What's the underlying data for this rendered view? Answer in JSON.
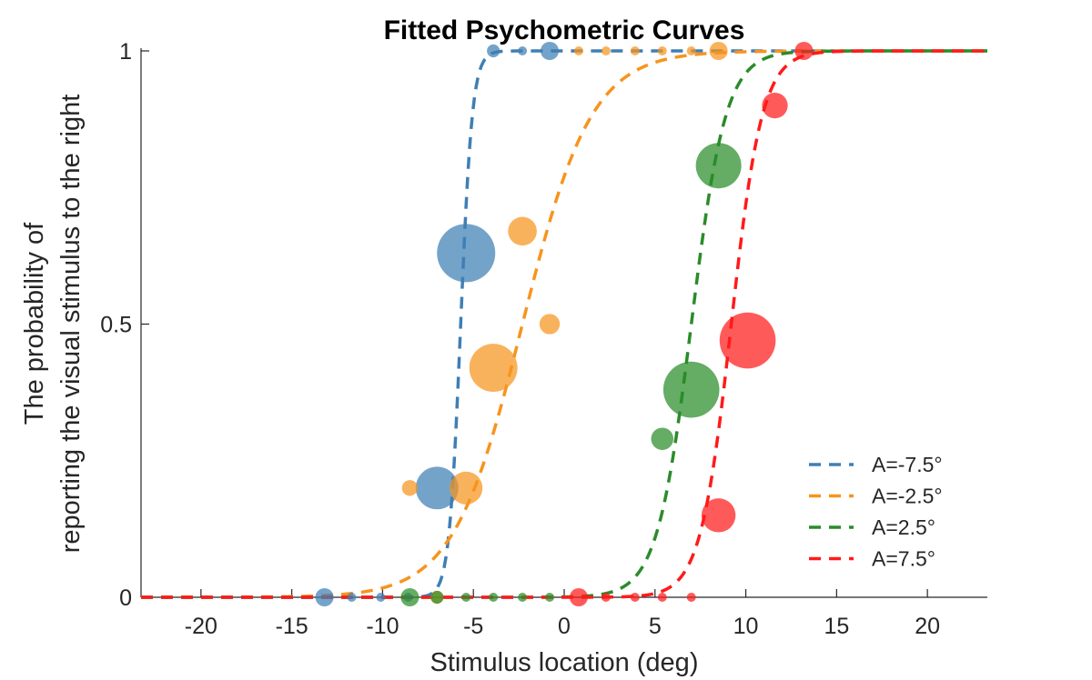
{
  "chart_data": {
    "type": "scatter",
    "title": "Fitted Psychometric Curves",
    "xlabel": "Stimulus location (deg)",
    "ylabel_line1": "The probability of",
    "ylabel_line2": "reporting the visual stimulus to the right",
    "xlim": [
      -23.3,
      23.3
    ],
    "ylim": [
      0,
      1
    ],
    "xticks": [
      -20,
      -15,
      -10,
      -5,
      0,
      5,
      10,
      15,
      20
    ],
    "xtick_labels": [
      "-20",
      "-15",
      "-10",
      "-5",
      "0",
      "5",
      "10",
      "15",
      "20"
    ],
    "yticks": [
      0,
      0.5,
      1
    ],
    "ytick_labels": [
      "0",
      "0.5",
      "1"
    ],
    "grid": false,
    "legend_position": "bottom-right",
    "line_style": "dashed fitted logistic curves",
    "series": [
      {
        "name": "A=-7.5°",
        "color": "#3f7fb4",
        "fit": {
          "mu": -5.7,
          "sigma": 0.32
        },
        "points": [
          {
            "x": -13.2,
            "y": 0,
            "n": 4
          },
          {
            "x": -11.7,
            "y": 0,
            "n": 1
          },
          {
            "x": -10.1,
            "y": 0,
            "n": 1
          },
          {
            "x": -8.6,
            "y": 0,
            "n": 1
          },
          {
            "x": -7.0,
            "y": 0.2,
            "n": 22
          },
          {
            "x": -5.4,
            "y": 0.63,
            "n": 41
          },
          {
            "x": -3.9,
            "y": 1,
            "n": 2
          },
          {
            "x": -2.3,
            "y": 1,
            "n": 1
          },
          {
            "x": -0.8,
            "y": 1,
            "n": 4
          }
        ]
      },
      {
        "name": "A=-2.5°",
        "color": "#f7941d",
        "fit": {
          "mu": -2.3,
          "sigma": 1.9
        },
        "points": [
          {
            "x": -8.5,
            "y": 0.2,
            "n": 3
          },
          {
            "x": -7.0,
            "y": 0,
            "n": 2
          },
          {
            "x": -5.4,
            "y": 0.2,
            "n": 13
          },
          {
            "x": -3.9,
            "y": 0.42,
            "n": 28
          },
          {
            "x": -2.3,
            "y": 0.67,
            "n": 10
          },
          {
            "x": -0.8,
            "y": 0.5,
            "n": 5
          },
          {
            "x": 0.8,
            "y": 1,
            "n": 1
          },
          {
            "x": 2.3,
            "y": 1,
            "n": 1
          },
          {
            "x": 3.9,
            "y": 1,
            "n": 1
          },
          {
            "x": 5.4,
            "y": 1,
            "n": 1
          },
          {
            "x": 7.0,
            "y": 1,
            "n": 1
          },
          {
            "x": 8.5,
            "y": 1,
            "n": 4
          }
        ]
      },
      {
        "name": "A=2.5°",
        "color": "#2a8c2a",
        "fit": {
          "mu": 7.0,
          "sigma": 0.95
        },
        "points": [
          {
            "x": -8.5,
            "y": 0,
            "n": 4
          },
          {
            "x": -7.0,
            "y": 0,
            "n": 2
          },
          {
            "x": -5.4,
            "y": 0,
            "n": 1
          },
          {
            "x": -3.9,
            "y": 0,
            "n": 1
          },
          {
            "x": -2.3,
            "y": 0,
            "n": 1
          },
          {
            "x": -0.8,
            "y": 0,
            "n": 1
          },
          {
            "x": 5.4,
            "y": 0.29,
            "n": 6
          },
          {
            "x": 7.0,
            "y": 0.38,
            "n": 38
          },
          {
            "x": 8.5,
            "y": 0.79,
            "n": 25
          }
        ]
      },
      {
        "name": "A=7.5°",
        "color": "#ff1a1a",
        "fit": {
          "mu": 9.2,
          "sigma": 0.85
        },
        "points": [
          {
            "x": 0.8,
            "y": 0,
            "n": 4
          },
          {
            "x": 2.3,
            "y": 0,
            "n": 1
          },
          {
            "x": 3.9,
            "y": 0,
            "n": 1
          },
          {
            "x": 5.4,
            "y": 0,
            "n": 1
          },
          {
            "x": 7.0,
            "y": 0,
            "n": 1
          },
          {
            "x": 8.5,
            "y": 0.15,
            "n": 14
          },
          {
            "x": 10.1,
            "y": 0.47,
            "n": 38
          },
          {
            "x": 11.6,
            "y": 0.9,
            "n": 8
          },
          {
            "x": 13.2,
            "y": 1,
            "n": 4
          }
        ]
      }
    ]
  }
}
